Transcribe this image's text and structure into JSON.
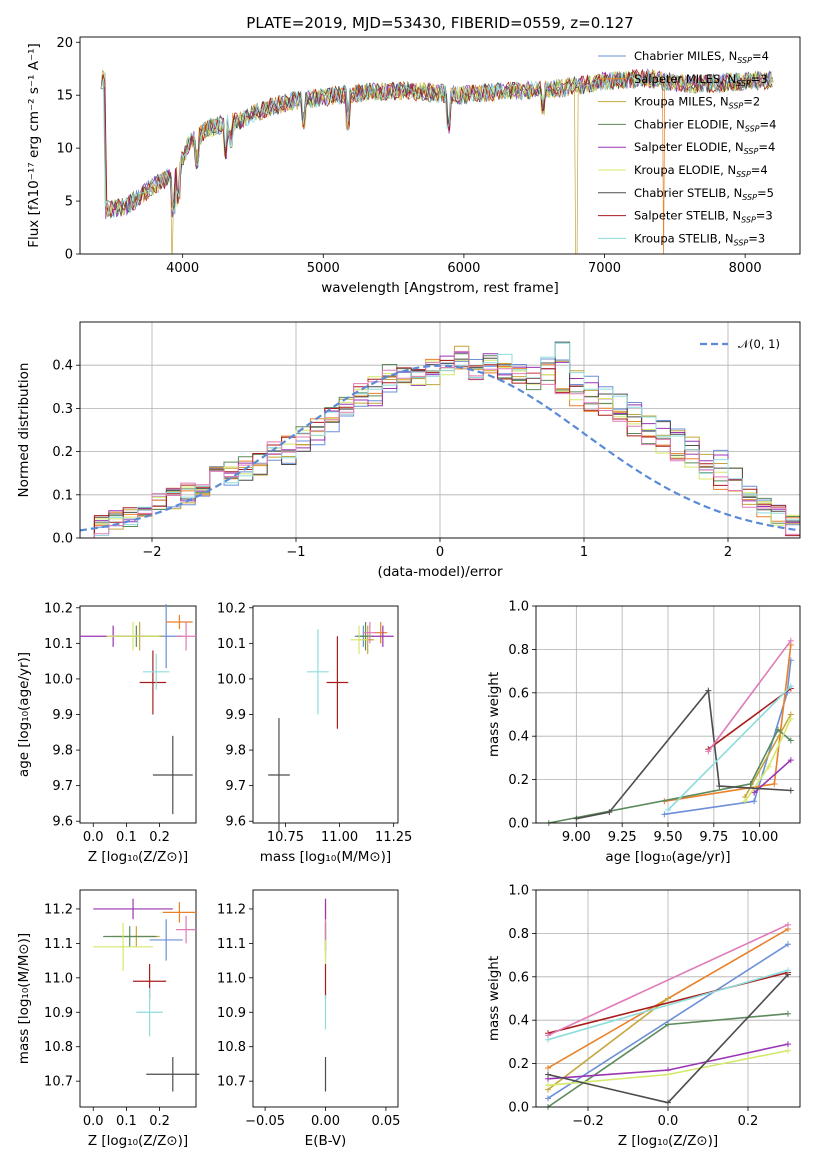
{
  "title": "PLATE=2019, MJD=53430, FIBERID=0559, z=0.127",
  "colors": [
    "#6b8fd8",
    "#e8812a",
    "#c4a63a",
    "#5c8a5c",
    "#9a35b4",
    "#d4e86a",
    "#4d4d4d",
    "#a81c1c",
    "#8fdcdc",
    "#e07bb8"
  ],
  "chart_data": [
    {
      "type": "line",
      "id": "spectrum",
      "title": "PLATE=2019, MJD=53430, FIBERID=0559, z=0.127",
      "xlabel": "wavelength [Angstrom, rest frame]",
      "ylabel": "Flux [fλ10⁻¹⁷ erg cm⁻² s⁻¹ A⁻¹]",
      "xlim": [
        3270,
        8390
      ],
      "ylim": [
        0,
        20.5
      ],
      "xticks": [
        4000,
        5000,
        6000,
        7000,
        8000
      ],
      "yticks": [
        0,
        5,
        10,
        15,
        20
      ],
      "continuum": [
        [
          3450,
          4.2
        ],
        [
          3600,
          4.5
        ],
        [
          3800,
          6.5
        ],
        [
          3950,
          7.5
        ],
        [
          4050,
          10.5
        ],
        [
          4200,
          12.0
        ],
        [
          4400,
          12.6
        ],
        [
          4600,
          13.8
        ],
        [
          4800,
          14.5
        ],
        [
          5000,
          14.8
        ],
        [
          5300,
          15.3
        ],
        [
          5600,
          15.4
        ],
        [
          6000,
          15.0
        ],
        [
          6300,
          15.4
        ],
        [
          6600,
          15.5
        ],
        [
          7000,
          16.3
        ],
        [
          7300,
          16.6
        ],
        [
          7600,
          16.0
        ],
        [
          8000,
          16.3
        ],
        [
          8200,
          16.5
        ]
      ],
      "legend_loc": "upper right",
      "series": [
        {
          "name": "Chabrier MILES, N_SSP=4",
          "color": "#6b8fd8"
        },
        {
          "name": "Salpeter MILES, N_SSP=3",
          "color": "#e8812a"
        },
        {
          "name": "Kroupa MILES, N_SSP=2",
          "color": "#c4a63a"
        },
        {
          "name": "Chabrier ELODIE, N_SSP=4",
          "color": "#5c8a5c"
        },
        {
          "name": "Salpeter ELODIE, N_SSP=4",
          "color": "#9a35b4"
        },
        {
          "name": "Kroupa ELODIE, N_SSP=4",
          "color": "#d4e86a"
        },
        {
          "name": "Chabrier STELIB, N_SSP=5",
          "color": "#4d4d4d"
        },
        {
          "name": "Salpeter STELIB, N_SSP=3",
          "color": "#a81c1c"
        },
        {
          "name": "Kroupa STELIB, N_SSP=3",
          "color": "#8fdcdc"
        }
      ]
    },
    {
      "type": "area",
      "id": "residuals",
      "xlabel": "(data-model)/error",
      "ylabel": "Normed distribution",
      "xlim": [
        -2.5,
        2.5
      ],
      "ylim": [
        0,
        0.5
      ],
      "xticks": [
        -2,
        -1,
        0,
        1,
        2
      ],
      "yticks": [
        0.0,
        0.1,
        0.2,
        0.3,
        0.4
      ],
      "grid": true,
      "legend": "𝒩(0, 1)",
      "bin_edges_start": -2.5,
      "bin_width": 0.1,
      "histograms": [
        [
          0.02,
          0.03,
          0.04,
          0.05,
          0.06,
          0.08,
          0.09,
          0.1,
          0.12,
          0.15,
          0.14,
          0.15,
          0.17,
          0.2,
          0.19,
          0.22,
          0.24,
          0.27,
          0.3,
          0.32,
          0.33,
          0.36,
          0.37,
          0.37,
          0.38,
          0.4,
          0.42,
          0.39,
          0.41,
          0.4,
          0.39,
          0.38,
          0.4,
          0.43,
          0.37,
          0.35,
          0.33,
          0.31,
          0.29,
          0.27,
          0.26,
          0.23,
          0.21,
          0.17,
          0.18,
          0.15,
          0.1,
          0.08,
          0.06,
          0.04,
          0.03
        ],
        [
          0.01,
          0.03,
          0.05,
          0.05,
          0.07,
          0.09,
          0.11,
          0.13,
          0.12,
          0.15,
          0.16,
          0.17,
          0.18,
          0.21,
          0.22,
          0.24,
          0.26,
          0.29,
          0.31,
          0.34,
          0.35,
          0.38,
          0.39,
          0.38,
          0.4,
          0.39,
          0.41,
          0.38,
          0.4,
          0.38,
          0.37,
          0.36,
          0.38,
          0.34,
          0.33,
          0.31,
          0.3,
          0.28,
          0.26,
          0.24,
          0.22,
          0.2,
          0.18,
          0.16,
          0.13,
          0.11,
          0.09,
          0.07,
          0.05,
          0.03,
          0.02
        ]
      ]
    },
    {
      "type": "scatter",
      "id": "age_vs_Z",
      "xlabel": "Z [log₁₀(Z/Z⊙)]",
      "ylabel": "age  [log₁₀(age/yr)]",
      "xlim": [
        -0.04,
        0.31
      ],
      "ylim": [
        9.595,
        10.205
      ],
      "xticks": [
        0.0,
        0.1,
        0.2
      ],
      "yticks": [
        9.6,
        9.7,
        9.8,
        9.9,
        10.0,
        10.1,
        10.2
      ],
      "points": [
        {
          "x": 0.22,
          "y": 10.12,
          "xerr": 0.05,
          "yerr": 0.09,
          "color": "#6b8fd8"
        },
        {
          "x": 0.26,
          "y": 10.16,
          "xerr": 0.04,
          "yerr": 0.02,
          "color": "#e8812a"
        },
        {
          "x": 0.14,
          "y": 10.12,
          "xerr": 0.07,
          "yerr": 0.04,
          "color": "#c4a63a"
        },
        {
          "x": 0.13,
          "y": 10.12,
          "xerr": 0.07,
          "yerr": 0.03,
          "color": "#5c8a5c"
        },
        {
          "x": 0.06,
          "y": 10.12,
          "xerr": 0.1,
          "yerr": 0.03,
          "color": "#9a35b4"
        },
        {
          "x": 0.12,
          "y": 10.12,
          "xerr": 0.08,
          "yerr": 0.04,
          "color": "#d4e86a"
        },
        {
          "x": 0.24,
          "y": 9.73,
          "xerr": 0.06,
          "yerr": 0.11,
          "color": "#4d4d4d"
        },
        {
          "x": 0.18,
          "y": 9.99,
          "xerr": 0.04,
          "yerr": 0.09,
          "color": "#a81c1c"
        },
        {
          "x": 0.19,
          "y": 10.02,
          "xerr": 0.04,
          "yerr": 0.05,
          "color": "#8fdcdc"
        },
        {
          "x": 0.28,
          "y": 10.12,
          "xerr": 0.03,
          "yerr": 0.04,
          "color": "#e07bb8"
        }
      ]
    },
    {
      "type": "scatter",
      "id": "age_vs_mass",
      "xlabel": "mass [log₁₀(M/M⊙)]",
      "xlim": [
        10.6,
        11.27
      ],
      "ylim": [
        9.595,
        10.205
      ],
      "xticks": [
        10.75,
        11.0,
        11.25
      ],
      "yticks": [
        9.6,
        9.7,
        9.8,
        9.9,
        10.0,
        10.1,
        10.2
      ],
      "points": [
        {
          "x": 11.11,
          "y": 10.12,
          "xerr": 0.04,
          "yerr": 0.03,
          "color": "#6b8fd8"
        },
        {
          "x": 11.19,
          "y": 10.13,
          "xerr": 0.03,
          "yerr": 0.03,
          "color": "#e8812a"
        },
        {
          "x": 11.13,
          "y": 10.11,
          "xerr": 0.03,
          "yerr": 0.04,
          "color": "#c4a63a"
        },
        {
          "x": 11.12,
          "y": 10.12,
          "xerr": 0.04,
          "yerr": 0.04,
          "color": "#5c8a5c"
        },
        {
          "x": 11.2,
          "y": 10.12,
          "xerr": 0.05,
          "yerr": 0.03,
          "color": "#9a35b4"
        },
        {
          "x": 11.09,
          "y": 10.11,
          "xerr": 0.04,
          "yerr": 0.04,
          "color": "#d4e86a"
        },
        {
          "x": 10.72,
          "y": 9.73,
          "xerr": 0.05,
          "yerr": 0.16,
          "color": "#4d4d4d"
        },
        {
          "x": 10.99,
          "y": 9.99,
          "xerr": 0.05,
          "yerr": 0.13,
          "color": "#a81c1c"
        },
        {
          "x": 10.9,
          "y": 10.02,
          "xerr": 0.05,
          "yerr": 0.12,
          "color": "#8fdcdc"
        },
        {
          "x": 11.14,
          "y": 10.13,
          "xerr": 0.03,
          "yerr": 0.03,
          "color": "#e07bb8"
        }
      ]
    },
    {
      "type": "line",
      "id": "massweight_vs_age",
      "xlabel": "age  [log₁₀(age/yr)]",
      "ylabel": "mass weight",
      "xlim": [
        8.78,
        10.22
      ],
      "ylim": [
        0,
        1
      ],
      "xticks": [
        9.0,
        9.25,
        9.5,
        9.75,
        10.0
      ],
      "yticks": [
        0.0,
        0.2,
        0.4,
        0.6,
        0.8,
        1.0
      ],
      "grid": true,
      "series": [
        {
          "color": "#6b8fd8",
          "x": [
            9.48,
            9.97,
            10.15,
            10.17
          ],
          "y": [
            0.04,
            0.1,
            0.6,
            0.75
          ]
        },
        {
          "color": "#e8812a",
          "x": [
            9.48,
            10.08,
            10.17
          ],
          "y": [
            0.1,
            0.18,
            0.82
          ]
        },
        {
          "color": "#c4a63a",
          "x": [
            9.92,
            10.17
          ],
          "y": [
            0.12,
            0.5
          ]
        },
        {
          "color": "#5c8a5c",
          "x": [
            8.85,
            9.95,
            10.1,
            10.17
          ],
          "y": [
            0.0,
            0.18,
            0.43,
            0.38
          ]
        },
        {
          "color": "#9a35b4",
          "x": [
            9.97,
            10.17
          ],
          "y": [
            0.14,
            0.29
          ]
        },
        {
          "color": "#d4e86a",
          "x": [
            9.92,
            10.05,
            10.17
          ],
          "y": [
            0.1,
            0.26,
            0.48
          ]
        },
        {
          "color": "#4d4d4d",
          "x": [
            9.0,
            9.18,
            9.72,
            9.78,
            10.17
          ],
          "y": [
            0.02,
            0.05,
            0.61,
            0.17,
            0.15
          ]
        },
        {
          "color": "#a81c1c",
          "x": [
            9.72,
            10.17
          ],
          "y": [
            0.34,
            0.62
          ]
        },
        {
          "color": "#8fdcdc",
          "x": [
            9.5,
            10.17
          ],
          "y": [
            0.06,
            0.63
          ]
        },
        {
          "color": "#e07bb8",
          "x": [
            9.72,
            10.17
          ],
          "y": [
            0.33,
            0.84
          ]
        }
      ]
    },
    {
      "type": "scatter",
      "id": "mass_vs_Z",
      "xlabel": "Z [log₁₀(Z/Z⊙)]",
      "ylabel": "mass [log₁₀(M/M⊙)]",
      "xlim": [
        -0.04,
        0.31
      ],
      "ylim": [
        10.625,
        11.255
      ],
      "xticks": [
        0.0,
        0.1,
        0.2
      ],
      "yticks": [
        10.7,
        10.8,
        10.9,
        11.0,
        11.1,
        11.2
      ],
      "points": [
        {
          "x": 0.22,
          "y": 11.11,
          "xerr": 0.05,
          "yerr": 0.06,
          "color": "#6b8fd8"
        },
        {
          "x": 0.26,
          "y": 11.19,
          "xerr": 0.05,
          "yerr": 0.03,
          "color": "#e8812a"
        },
        {
          "x": 0.13,
          "y": 11.12,
          "xerr": 0.07,
          "yerr": 0.03,
          "color": "#c4a63a"
        },
        {
          "x": 0.11,
          "y": 11.12,
          "xerr": 0.08,
          "yerr": 0.03,
          "color": "#5c8a5c"
        },
        {
          "x": 0.12,
          "y": 11.2,
          "xerr": 0.12,
          "yerr": 0.03,
          "color": "#9a35b4"
        },
        {
          "x": 0.09,
          "y": 11.09,
          "xerr": 0.09,
          "yerr": 0.07,
          "color": "#d4e86a"
        },
        {
          "x": 0.24,
          "y": 10.72,
          "xerr": 0.08,
          "yerr": 0.05,
          "color": "#4d4d4d"
        },
        {
          "x": 0.17,
          "y": 10.99,
          "xerr": 0.05,
          "yerr": 0.05,
          "color": "#a81c1c"
        },
        {
          "x": 0.17,
          "y": 10.9,
          "xerr": 0.04,
          "yerr": 0.07,
          "color": "#8fdcdc"
        },
        {
          "x": 0.28,
          "y": 11.14,
          "xerr": 0.03,
          "yerr": 0.04,
          "color": "#e07bb8"
        }
      ]
    },
    {
      "type": "scatter",
      "id": "mass_vs_ebv",
      "xlabel": "E(B-V)",
      "xlim": [
        -0.06,
        0.06
      ],
      "ylim": [
        10.625,
        11.255
      ],
      "xticks": [
        -0.05,
        0.0,
        0.05
      ],
      "yticks": [
        10.7,
        10.8,
        10.9,
        11.0,
        11.1,
        11.2
      ],
      "points": [
        {
          "x": 0.0,
          "y": 11.11,
          "xerr": 0,
          "yerr": 0.05,
          "color": "#6b8fd8"
        },
        {
          "x": 0.0,
          "y": 11.19,
          "xerr": 0,
          "yerr": 0.03,
          "color": "#e8812a"
        },
        {
          "x": 0.0,
          "y": 11.12,
          "xerr": 0,
          "yerr": 0.04,
          "color": "#c4a63a"
        },
        {
          "x": 0.0,
          "y": 11.12,
          "xerr": 0,
          "yerr": 0.04,
          "color": "#5c8a5c"
        },
        {
          "x": 0.0,
          "y": 11.2,
          "xerr": 0,
          "yerr": 0.03,
          "color": "#9a35b4"
        },
        {
          "x": 0.0,
          "y": 11.09,
          "xerr": 0,
          "yerr": 0.05,
          "color": "#d4e86a"
        },
        {
          "x": 0.0,
          "y": 10.72,
          "xerr": 0,
          "yerr": 0.05,
          "color": "#4d4d4d"
        },
        {
          "x": 0.0,
          "y": 10.99,
          "xerr": 0,
          "yerr": 0.05,
          "color": "#a81c1c"
        },
        {
          "x": 0.0,
          "y": 10.9,
          "xerr": 0,
          "yerr": 0.05,
          "color": "#8fdcdc"
        },
        {
          "x": 0.0,
          "y": 11.14,
          "xerr": 0,
          "yerr": 0.03,
          "color": "#e07bb8"
        }
      ]
    },
    {
      "type": "line",
      "id": "massweight_vs_Z",
      "xlabel": "Z [log₁₀(Z/Z⊙)]",
      "ylabel": "mass weight",
      "xlim": [
        -0.33,
        0.33
      ],
      "ylim": [
        0,
        1
      ],
      "xticks": [
        -0.2,
        0.0,
        0.2
      ],
      "yticks": [
        0.0,
        0.2,
        0.4,
        0.6,
        0.8,
        1.0
      ],
      "grid": true,
      "series": [
        {
          "color": "#6b8fd8",
          "x": [
            -0.3,
            0.3
          ],
          "y": [
            0.04,
            0.75
          ]
        },
        {
          "color": "#e8812a",
          "x": [
            -0.3,
            0.3
          ],
          "y": [
            0.18,
            0.82
          ]
        },
        {
          "color": "#c4a63a",
          "x": [
            -0.3,
            0.0
          ],
          "y": [
            0.08,
            0.5
          ]
        },
        {
          "color": "#5c8a5c",
          "x": [
            -0.3,
            0.0,
            0.3
          ],
          "y": [
            0.0,
            0.38,
            0.43
          ]
        },
        {
          "color": "#9a35b4",
          "x": [
            -0.3,
            0.0,
            0.3
          ],
          "y": [
            0.13,
            0.17,
            0.29
          ]
        },
        {
          "color": "#d4e86a",
          "x": [
            -0.3,
            0.0,
            0.3
          ],
          "y": [
            0.1,
            0.15,
            0.26
          ]
        },
        {
          "color": "#4d4d4d",
          "x": [
            -0.3,
            0.0,
            0.3
          ],
          "y": [
            0.15,
            0.02,
            0.61
          ]
        },
        {
          "color": "#a81c1c",
          "x": [
            -0.3,
            0.3
          ],
          "y": [
            0.34,
            0.62
          ]
        },
        {
          "color": "#8fdcdc",
          "x": [
            -0.3,
            0.3
          ],
          "y": [
            0.31,
            0.63
          ]
        },
        {
          "color": "#e07bb8",
          "x": [
            -0.3,
            0.3
          ],
          "y": [
            0.33,
            0.84
          ]
        }
      ]
    }
  ]
}
